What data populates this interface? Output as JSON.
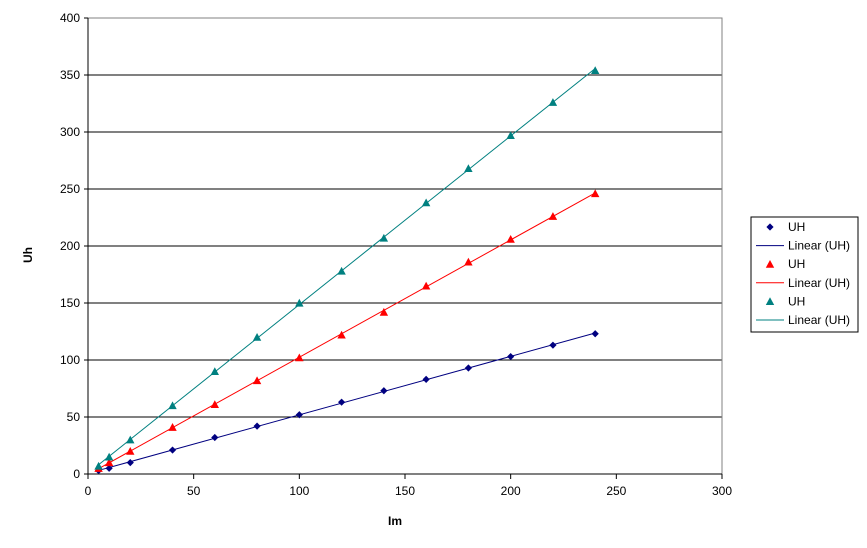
{
  "chart_data": {
    "type": "scatter",
    "xlabel": "Im",
    "ylabel": "Uh",
    "xlim": [
      0,
      300
    ],
    "ylim": [
      0,
      400
    ],
    "x_ticks": [
      0,
      50,
      100,
      150,
      200,
      250,
      300
    ],
    "y_ticks": [
      0,
      50,
      100,
      150,
      200,
      250,
      300,
      350,
      400
    ],
    "grid": "horizontal",
    "legend_position": "right",
    "series": [
      {
        "name": "UH",
        "trend_name": "Linear (UH)",
        "marker": "diamond",
        "color": "#000080",
        "x": [
          5,
          10,
          20,
          40,
          60,
          80,
          100,
          120,
          140,
          160,
          180,
          200,
          220,
          240
        ],
        "y": [
          3,
          5,
          10,
          21,
          32,
          42,
          52,
          63,
          73,
          83,
          93,
          103,
          113,
          123
        ]
      },
      {
        "name": "UH",
        "trend_name": "Linear (UH)",
        "marker": "triangle",
        "color": "#ff0000",
        "x": [
          5,
          10,
          20,
          40,
          60,
          80,
          100,
          120,
          140,
          160,
          180,
          200,
          220,
          240
        ],
        "y": [
          5,
          10,
          20,
          41,
          61,
          82,
          102,
          122,
          142,
          165,
          186,
          206,
          226,
          246
        ]
      },
      {
        "name": "UH",
        "trend_name": "Linear (UH)",
        "marker": "triangle",
        "color": "#008080",
        "x": [
          5,
          10,
          20,
          40,
          60,
          80,
          100,
          120,
          140,
          160,
          180,
          200,
          220,
          240
        ],
        "y": [
          7,
          15,
          30,
          60,
          90,
          120,
          150,
          178,
          207,
          238,
          268,
          297,
          326,
          354
        ]
      }
    ]
  }
}
